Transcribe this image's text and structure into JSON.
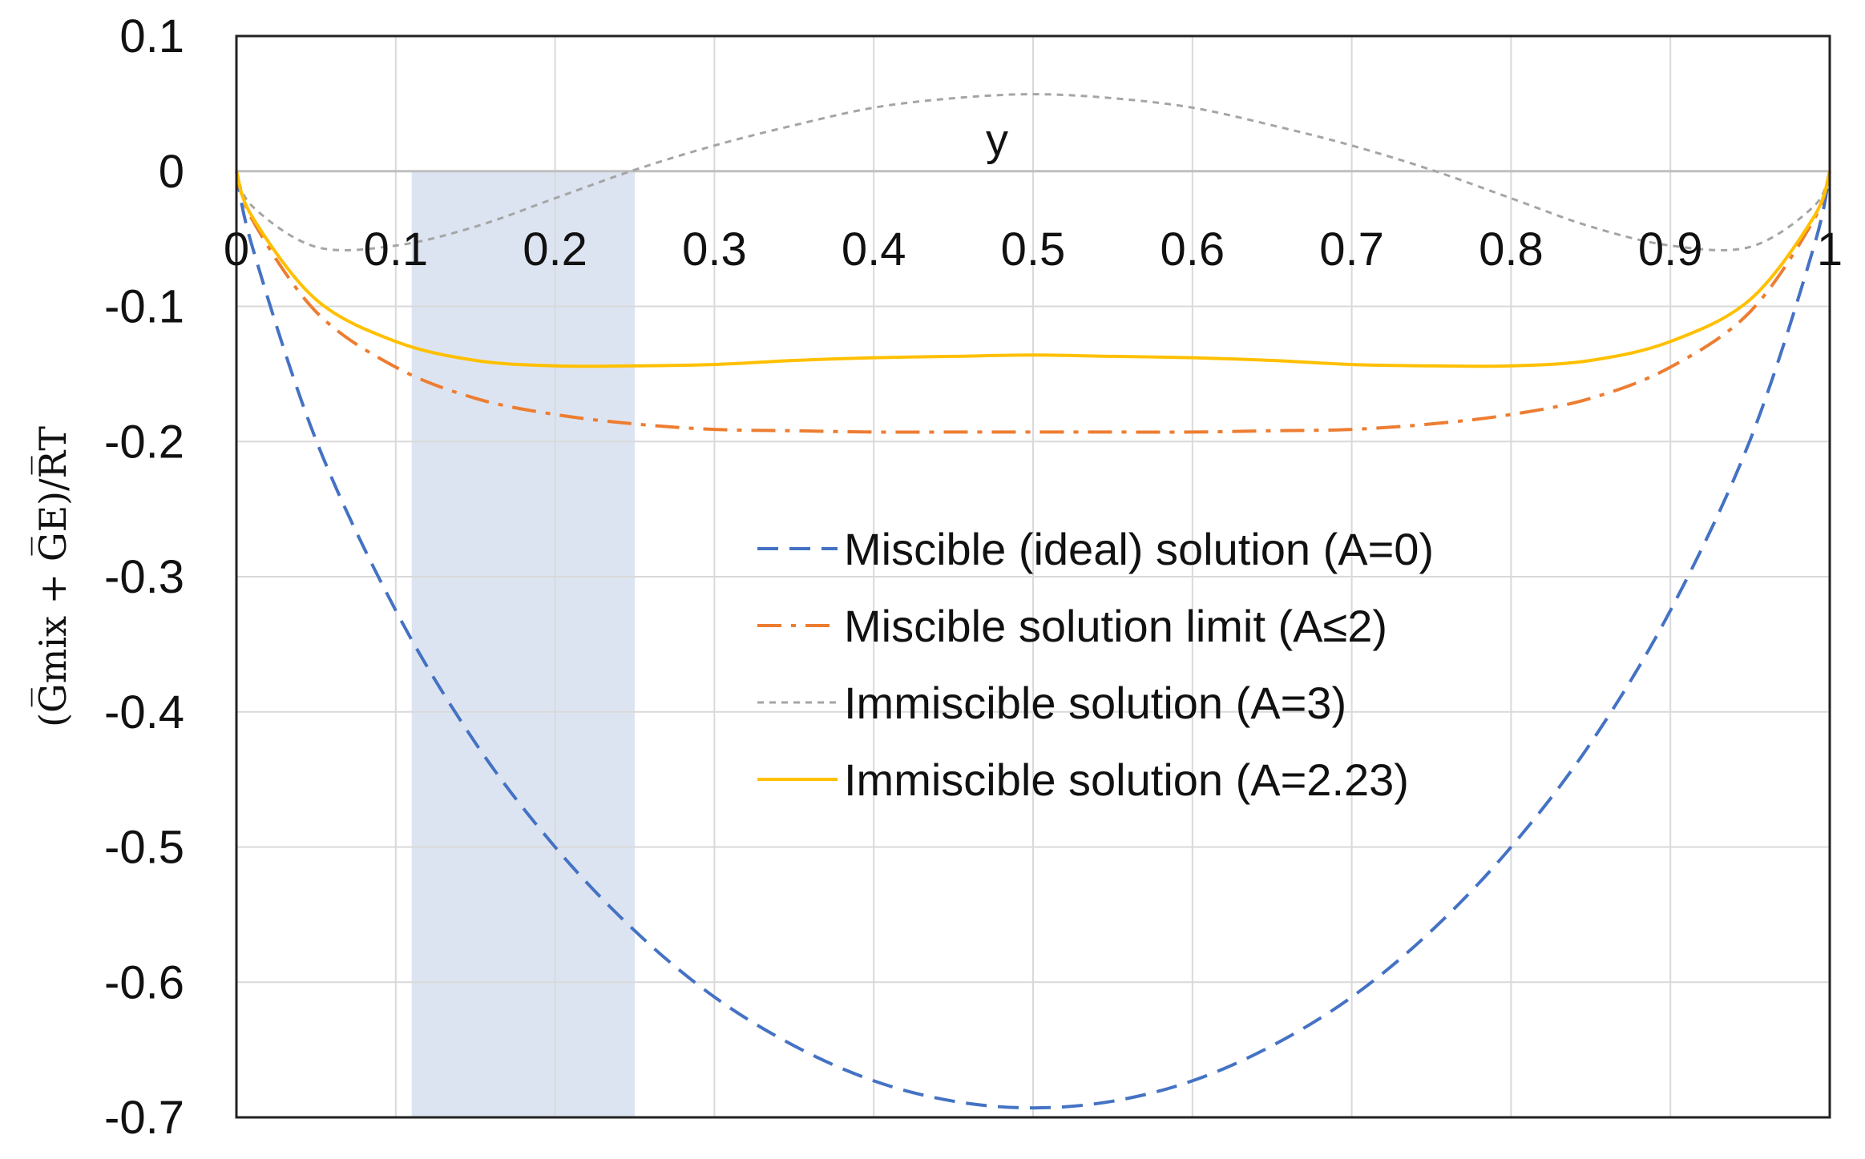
{
  "chart_data": {
    "type": "line",
    "title": "",
    "xlabel": "y",
    "ylabel": "(G̅mix + G̅E)/R̅T",
    "xlim": [
      0,
      1
    ],
    "ylim": [
      -0.7,
      0.1
    ],
    "x_ticks": [
      "0",
      "0.1",
      "0.2",
      "0.3",
      "0.4",
      "0.5",
      "0.6",
      "0.7",
      "0.8",
      "0.9",
      "1"
    ],
    "y_ticks": [
      "0.1",
      "0",
      "-0.1",
      "-0.2",
      "-0.3",
      "-0.4",
      "-0.5",
      "-0.6",
      "-0.7"
    ],
    "grid": true,
    "x_tick_labels_position": "at y = 0",
    "legend_position": "center-right",
    "shaded_region": {
      "x_from": 0.11,
      "x_to": 0.25,
      "y_from": -0.7,
      "y_to": 0,
      "color": "#dde4f1"
    },
    "x": [
      0,
      0.01,
      0.05,
      0.1,
      0.15,
      0.2,
      0.25,
      0.3,
      0.35,
      0.4,
      0.45,
      0.5,
      0.55,
      0.6,
      0.65,
      0.7,
      0.75,
      0.8,
      0.85,
      0.9,
      0.95,
      0.99,
      1
    ],
    "series": [
      {
        "name": "Miscible (ideal) solution (A=0)",
        "color": "#4472c4",
        "style": "dashed",
        "values": [
          0,
          -0.056,
          -0.199,
          -0.325,
          -0.423,
          -0.5,
          -0.562,
          -0.611,
          -0.647,
          -0.673,
          -0.688,
          -0.693,
          -0.688,
          -0.673,
          -0.647,
          -0.611,
          -0.562,
          -0.5,
          -0.423,
          -0.325,
          -0.199,
          -0.056,
          0
        ]
      },
      {
        "name": "Miscible solution limit (A≤2)",
        "color": "#ed7d31",
        "style": "dash-dot",
        "values": [
          0,
          -0.036,
          -0.104,
          -0.145,
          -0.168,
          -0.18,
          -0.187,
          -0.191,
          -0.192,
          -0.193,
          -0.193,
          -0.193,
          -0.193,
          -0.193,
          -0.192,
          -0.191,
          -0.187,
          -0.18,
          -0.168,
          -0.145,
          -0.104,
          -0.036,
          0
        ]
      },
      {
        "name": "Immiscible solution (A=3)",
        "color": "#a5a5a5",
        "style": "dotted",
        "values": [
          0,
          -0.026,
          -0.056,
          -0.055,
          -0.041,
          -0.02,
          0.001,
          0.019,
          0.034,
          0.047,
          0.054,
          0.057,
          0.054,
          0.047,
          0.034,
          0.019,
          0.001,
          -0.02,
          -0.041,
          -0.055,
          -0.056,
          -0.026,
          0
        ]
      },
      {
        "name": "Immiscible solution (A=2.23)",
        "color": "#ffc000",
        "style": "solid",
        "values": [
          0,
          -0.034,
          -0.095,
          -0.126,
          -0.14,
          -0.144,
          -0.144,
          -0.143,
          -0.14,
          -0.138,
          -0.137,
          -0.136,
          -0.137,
          -0.138,
          -0.14,
          -0.143,
          -0.144,
          -0.144,
          -0.14,
          -0.126,
          -0.095,
          -0.034,
          0
        ]
      }
    ]
  }
}
